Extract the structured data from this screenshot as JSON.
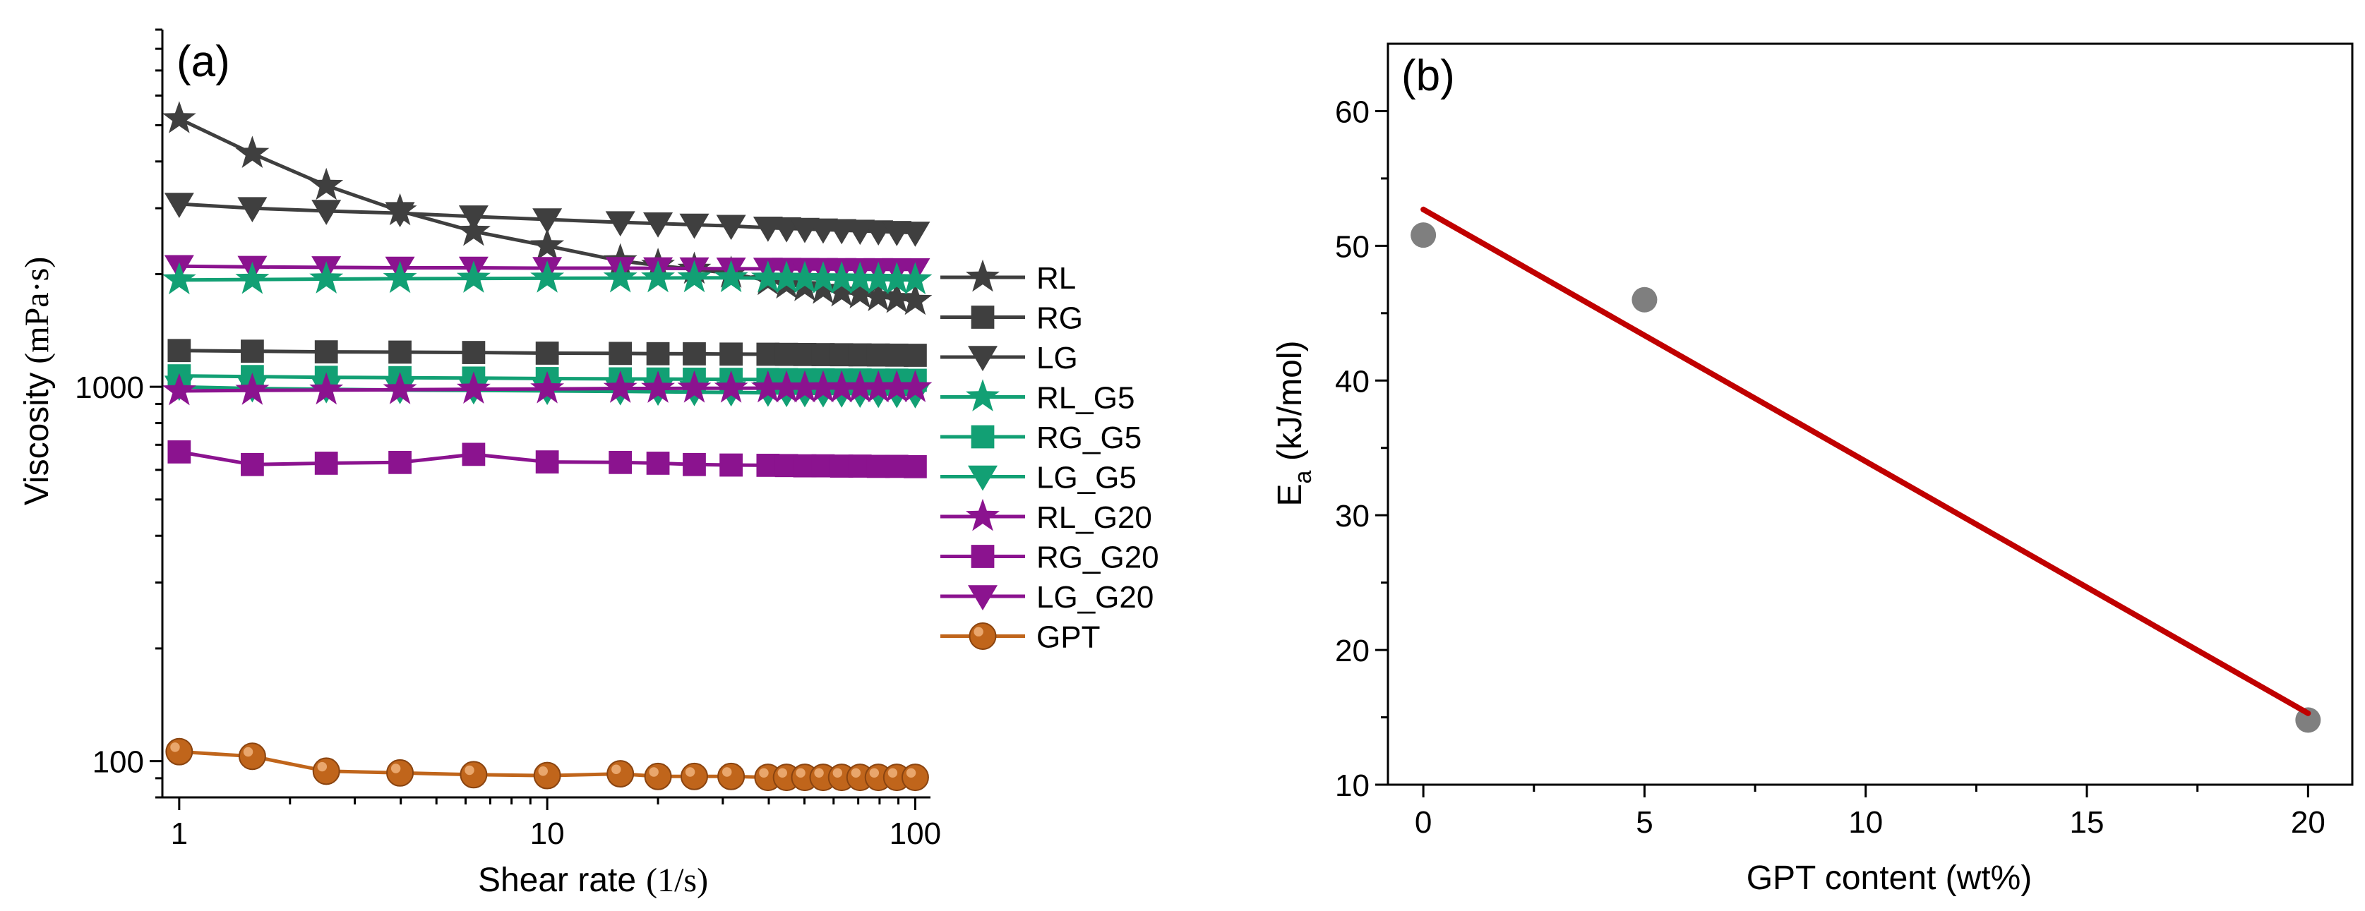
{
  "chart_data": [
    {
      "type": "line",
      "panel_label": "(a)",
      "xscale": "log",
      "yscale": "log",
      "xlim": [
        0.9,
        110
      ],
      "ylim": [
        80,
        9000
      ],
      "xlabel": "Shear rate",
      "xlabel_unit": "(1/s)",
      "ylabel": "Viscosity",
      "ylabel_unit": "(mPa·s)",
      "xticks": [
        1,
        10,
        100
      ],
      "xtick_labels": [
        "1",
        "10",
        "100"
      ],
      "yticks": [
        100,
        1000
      ],
      "ytick_labels": [
        "100",
        "1000"
      ],
      "legend_position": "right",
      "x": [
        1,
        1.58,
        2.51,
        3.98,
        6.31,
        10,
        15.8,
        20,
        25.1,
        31.6,
        39.8,
        44.7,
        50.1,
        56.2,
        63.1,
        70.8,
        79.4,
        89.1,
        100
      ],
      "series": [
        {
          "name": "RL",
          "marker": "star",
          "color": "#3f3f3f",
          "values": [
            5200,
            4200,
            3450,
            2950,
            2600,
            2380,
            2170,
            2110,
            2060,
            2010,
            1920,
            1880,
            1850,
            1820,
            1790,
            1770,
            1740,
            1720,
            1700
          ]
        },
        {
          "name": "RG",
          "marker": "square",
          "color": "#3f3f3f",
          "values": [
            1250,
            1245,
            1240,
            1238,
            1235,
            1230,
            1228,
            1226,
            1225,
            1223,
            1222,
            1221,
            1220,
            1219,
            1218,
            1217,
            1216,
            1215,
            1214
          ]
        },
        {
          "name": "LG",
          "marker": "triangle-down",
          "color": "#3f3f3f",
          "values": [
            3080,
            3000,
            2950,
            2910,
            2850,
            2800,
            2750,
            2730,
            2710,
            2690,
            2660,
            2650,
            2640,
            2630,
            2620,
            2610,
            2600,
            2590,
            2580
          ]
        },
        {
          "name": "RL_G5",
          "marker": "star",
          "color": "#12a074",
          "values": [
            1930,
            1935,
            1940,
            1945,
            1948,
            1950,
            1952,
            1953,
            1954,
            1955,
            1950,
            1948,
            1945,
            1942,
            1940,
            1937,
            1935,
            1932,
            1930
          ]
        },
        {
          "name": "RG_G5",
          "marker": "square",
          "color": "#12a074",
          "values": [
            1070,
            1065,
            1060,
            1058,
            1055,
            1052,
            1050,
            1049,
            1048,
            1047,
            1046,
            1045,
            1044,
            1044,
            1043,
            1043,
            1042,
            1042,
            1041
          ]
        },
        {
          "name": "LG_G5",
          "marker": "triangle-down",
          "color": "#12a074",
          "values": [
            1000,
            990,
            985,
            980,
            978,
            975,
            972,
            970,
            968,
            966,
            964,
            962,
            961,
            960,
            959,
            958,
            957,
            956,
            955
          ]
        },
        {
          "name": "RL_G20",
          "marker": "star",
          "color": "#8b138f",
          "values": [
            975,
            978,
            980,
            982,
            985,
            987,
            990,
            990,
            991,
            991,
            992,
            992,
            992,
            993,
            993,
            993,
            993,
            994,
            994
          ]
        },
        {
          "name": "RG_G20",
          "marker": "square",
          "color": "#8b138f",
          "values": [
            670,
            620,
            625,
            628,
            660,
            630,
            628,
            625,
            620,
            618,
            617,
            616,
            615,
            615,
            614,
            614,
            613,
            613,
            612
          ]
        },
        {
          "name": "LG_G20",
          "marker": "triangle-down",
          "color": "#8b138f",
          "values": [
            2100,
            2090,
            2085,
            2080,
            2080,
            2075,
            2075,
            2072,
            2070,
            2068,
            2066,
            2065,
            2064,
            2063,
            2062,
            2061,
            2060,
            2060,
            2059
          ]
        },
        {
          "name": "GPT",
          "marker": "circle",
          "color": "#c0651b",
          "values": [
            106,
            103,
            94,
            93,
            92,
            91.5,
            92.5,
            91,
            91,
            91,
            90.5,
            90.5,
            90.5,
            90.5,
            90.5,
            90.5,
            90.5,
            90.5,
            90.5
          ]
        }
      ]
    },
    {
      "type": "scatter",
      "panel_label": "(b)",
      "xlim": [
        -0.8,
        21
      ],
      "ylim": [
        10,
        65
      ],
      "xlabel": "GPT content (wt%)",
      "ylabel_main": "E",
      "ylabel_sub": "a",
      "ylabel_rest": " (kJ/mol)",
      "xticks": [
        0,
        5,
        10,
        15,
        20
      ],
      "xtick_labels": [
        "0",
        "5",
        "10",
        "15",
        "20"
      ],
      "yticks": [
        10,
        20,
        30,
        40,
        50,
        60
      ],
      "ytick_labels": [
        "10",
        "20",
        "30",
        "40",
        "50",
        "60"
      ],
      "points": [
        {
          "x": 0,
          "y": 50.8
        },
        {
          "x": 5,
          "y": 46
        },
        {
          "x": 20,
          "y": 14.8
        }
      ],
      "point_color": "#7f7f7f",
      "fit_line": {
        "x": [
          0,
          20
        ],
        "y": [
          52.7,
          15.3
        ],
        "color": "#c00000"
      }
    }
  ]
}
